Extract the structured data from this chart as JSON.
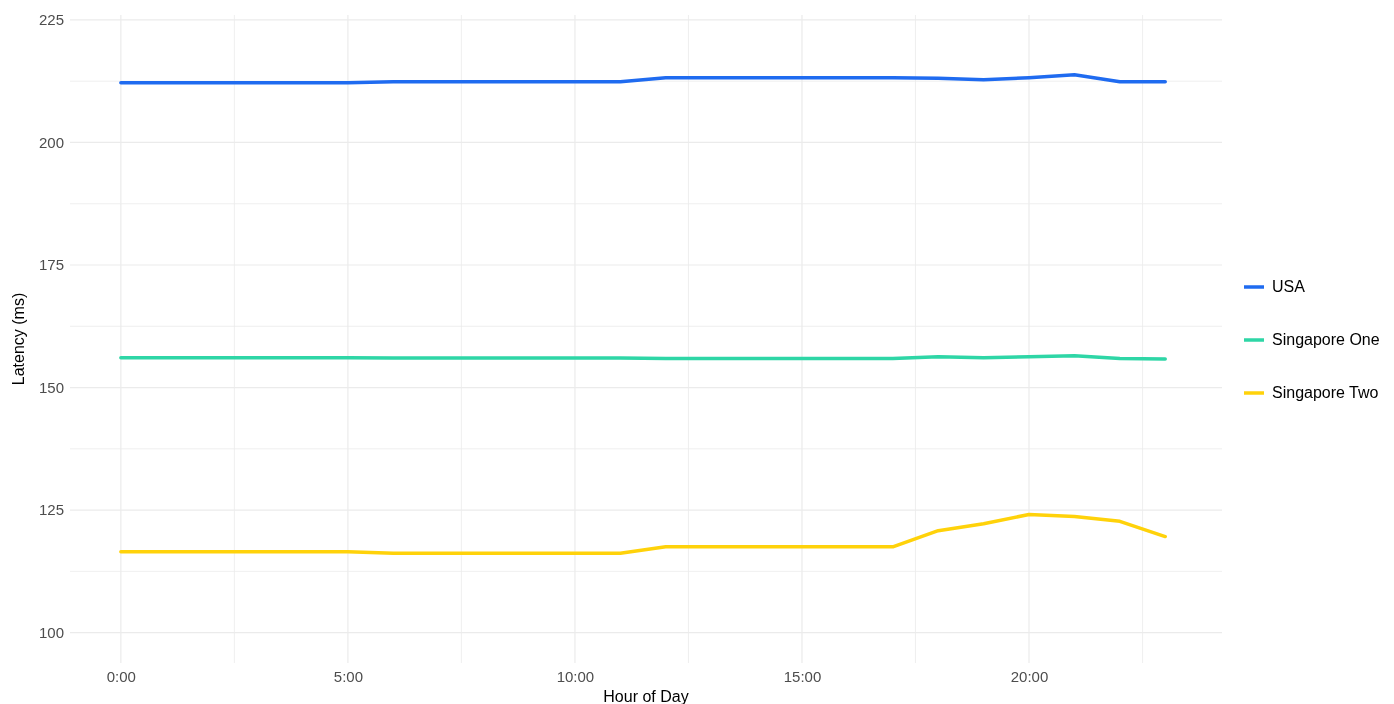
{
  "chart_data": {
    "type": "line",
    "xlabel": "Hour of Day",
    "ylabel": "Latency (ms)",
    "x": [
      0,
      1,
      2,
      3,
      4,
      5,
      6,
      7,
      8,
      9,
      10,
      11,
      12,
      13,
      14,
      15,
      16,
      17,
      18,
      19,
      20,
      21,
      22,
      23
    ],
    "xlim": [
      -1.12,
      24.25
    ],
    "xticks": [
      {
        "value": 0,
        "label": "0:00"
      },
      {
        "value": 2.5,
        "label": null
      },
      {
        "value": 5,
        "label": "5:00"
      },
      {
        "value": 7.5,
        "label": null
      },
      {
        "value": 10,
        "label": "10:00"
      },
      {
        "value": 12.5,
        "label": null
      },
      {
        "value": 15,
        "label": "15:00"
      },
      {
        "value": 17.5,
        "label": null
      },
      {
        "value": 20,
        "label": "20:00"
      },
      {
        "value": 22.5,
        "label": null
      }
    ],
    "ylim": [
      93.8,
      226
    ],
    "yticks": [
      {
        "value": 100,
        "label": "100"
      },
      {
        "value": 112.5,
        "label": null
      },
      {
        "value": 125,
        "label": "125"
      },
      {
        "value": 137.5,
        "label": null
      },
      {
        "value": 150,
        "label": "150"
      },
      {
        "value": 162.5,
        "label": null
      },
      {
        "value": 175,
        "label": "175"
      },
      {
        "value": 187.5,
        "label": null
      },
      {
        "value": 200,
        "label": "200"
      },
      {
        "value": 212.5,
        "label": null
      },
      {
        "value": 225,
        "label": "225"
      }
    ],
    "grid": true,
    "legend": "right",
    "line_style": "solid",
    "marker": "none",
    "series": [
      {
        "name": "USA",
        "color": "#1f6bf0",
        "values": [
          212.2,
          212.2,
          212.2,
          212.2,
          212.2,
          212.2,
          212.4,
          212.4,
          212.4,
          212.4,
          212.4,
          212.4,
          213.2,
          213.2,
          213.2,
          213.2,
          213.2,
          213.2,
          213.1,
          212.8,
          213.2,
          213.8,
          212.4,
          212.4
        ]
      },
      {
        "name": "Singapore One",
        "color": "#2ed6a6",
        "values": [
          156.1,
          156.1,
          156.1,
          156.1,
          156.1,
          156.1,
          156.0,
          156.0,
          156.0,
          156.0,
          156.0,
          156.0,
          155.9,
          155.9,
          155.9,
          155.9,
          155.9,
          155.9,
          156.3,
          156.1,
          156.3,
          156.5,
          155.9,
          155.8
        ]
      },
      {
        "name": "Singapore Two",
        "color": "#ffd20a",
        "values": [
          116.5,
          116.5,
          116.5,
          116.5,
          116.5,
          116.5,
          116.2,
          116.2,
          116.2,
          116.2,
          116.2,
          116.2,
          117.5,
          117.5,
          117.5,
          117.5,
          117.5,
          117.5,
          120.8,
          122.2,
          124.1,
          123.7,
          122.7,
          119.6
        ]
      }
    ]
  }
}
